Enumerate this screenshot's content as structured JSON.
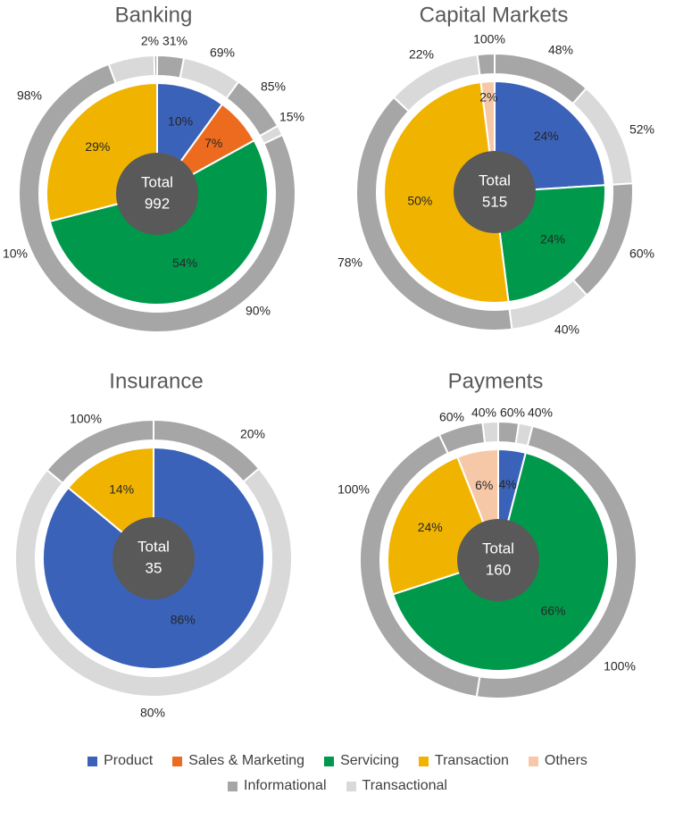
{
  "chart_data": [
    {
      "type": "pie",
      "title": "Banking",
      "center_label": "Total",
      "total": "992",
      "inner": [
        {
          "category": "Product",
          "value": 10,
          "label": "10%"
        },
        {
          "category": "Sales & Marketing",
          "value": 7,
          "label": "7%"
        },
        {
          "category": "Servicing",
          "value": 54,
          "label": "54%"
        },
        {
          "category": "Transaction",
          "value": 29,
          "label": "29%"
        }
      ],
      "outer": [
        {
          "type": "Informational",
          "label": "31%"
        },
        {
          "type": "Transactional",
          "label": "69%"
        },
        {
          "type": "Informational",
          "label": "85%"
        },
        {
          "type": "Transactional",
          "label": "15%"
        },
        {
          "type": "Informational",
          "label": "90%"
        },
        {
          "type": "Transactional",
          "label": "10%"
        },
        {
          "type": "Informational",
          "label": "98%"
        },
        {
          "type": "Transactional",
          "label": "2%"
        }
      ]
    },
    {
      "type": "pie",
      "title": "Capital Markets",
      "center_label": "Total",
      "total": "515",
      "inner": [
        {
          "category": "Product",
          "value": 24,
          "label": "24%"
        },
        {
          "category": "Servicing",
          "value": 24,
          "label": "24%"
        },
        {
          "category": "Transaction",
          "value": 50,
          "label": "50%"
        },
        {
          "category": "Others",
          "value": 2,
          "label": "2%"
        }
      ],
      "outer": [
        {
          "type": "Informational",
          "label": "48%"
        },
        {
          "type": "Transactional",
          "label": "52%"
        },
        {
          "type": "Informational",
          "label": "60%"
        },
        {
          "type": "Transactional",
          "label": "40%"
        },
        {
          "type": "Informational",
          "label": "78%"
        },
        {
          "type": "Transactional",
          "label": "22%"
        },
        {
          "type": "Informational",
          "label": "100%"
        }
      ]
    },
    {
      "type": "pie",
      "title": "Insurance",
      "center_label": "Total",
      "total": "35",
      "inner": [
        {
          "category": "Product",
          "value": 86,
          "label": "86%"
        },
        {
          "category": "Transaction",
          "value": 14,
          "label": "14%"
        }
      ],
      "outer": [
        {
          "type": "Informational",
          "label": "20%"
        },
        {
          "type": "Transactional",
          "label": "80%"
        },
        {
          "type": "Informational",
          "label": "100%"
        }
      ]
    },
    {
      "type": "pie",
      "title": "Payments",
      "center_label": "Total",
      "total": "160",
      "inner": [
        {
          "category": "Product",
          "value": 4,
          "label": "4%"
        },
        {
          "category": "Servicing",
          "value": 66,
          "label": "66%"
        },
        {
          "category": "Transaction",
          "value": 24,
          "label": "24%"
        },
        {
          "category": "Others",
          "value": 6,
          "label": "6%"
        }
      ],
      "outer": [
        {
          "type": "Informational",
          "label": "60%"
        },
        {
          "type": "Transactional",
          "label": "40%"
        },
        {
          "type": "Informational",
          "label": "100%"
        },
        {
          "type": "Informational",
          "label": "100%"
        },
        {
          "type": "Informational",
          "label": "60%"
        },
        {
          "type": "Transactional",
          "label": "40%"
        }
      ]
    }
  ],
  "legend": {
    "row1": [
      {
        "name": "Product",
        "color": "#3a62b8"
      },
      {
        "name": "Sales & Marketing",
        "color": "#ed6b1e"
      },
      {
        "name": "Servicing",
        "color": "#00994c"
      },
      {
        "name": "Transaction",
        "color": "#f0b400"
      },
      {
        "name": "Others",
        "color": "#f7c8a8"
      }
    ],
    "row2": [
      {
        "name": "Informational",
        "color": "#a6a6a6"
      },
      {
        "name": "Transactional",
        "color": "#d9d9d9"
      }
    ]
  },
  "colors": {
    "Product": "#3a62b8",
    "Sales & Marketing": "#ed6b1e",
    "Servicing": "#00994c",
    "Transaction": "#f0b400",
    "Others": "#f7c8a8",
    "Informational": "#a6a6a6",
    "Transactional": "#d9d9d9",
    "center": "#595959"
  }
}
